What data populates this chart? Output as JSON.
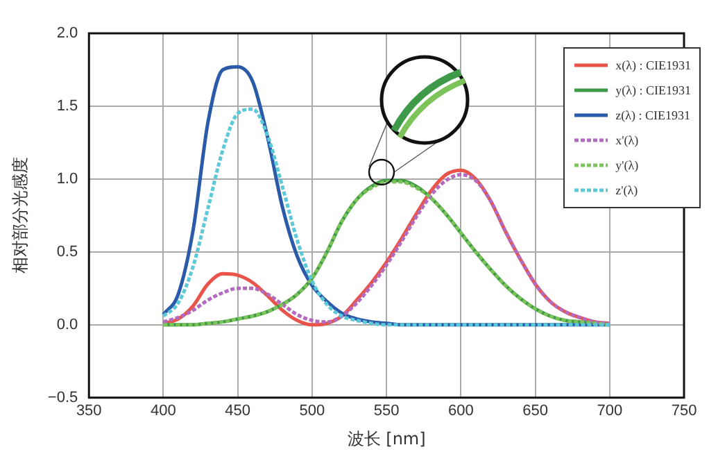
{
  "chart_data": {
    "type": "line",
    "xlabel": "波长 [nm]",
    "ylabel": "相对部分光感度",
    "x": [
      400,
      410,
      420,
      430,
      440,
      450,
      460,
      470,
      480,
      490,
      500,
      510,
      520,
      530,
      540,
      550,
      560,
      570,
      580,
      590,
      600,
      610,
      620,
      630,
      640,
      650,
      660,
      670,
      680,
      690,
      700
    ],
    "series": [
      {
        "name": "x(λ) : CIE1931",
        "color": "#e8544a",
        "line_style": "solid",
        "values": [
          0.01,
          0.04,
          0.13,
          0.28,
          0.35,
          0.34,
          0.29,
          0.2,
          0.1,
          0.03,
          0.0,
          0.01,
          0.06,
          0.17,
          0.29,
          0.43,
          0.59,
          0.76,
          0.92,
          1.03,
          1.06,
          1.0,
          0.85,
          0.64,
          0.45,
          0.28,
          0.16,
          0.09,
          0.05,
          0.02,
          0.01
        ]
      },
      {
        "name": "y(λ) : CIE1931",
        "color": "#3e9a48",
        "line_style": "solid",
        "values": [
          0.0,
          0.0,
          0.0,
          0.01,
          0.02,
          0.04,
          0.06,
          0.09,
          0.14,
          0.21,
          0.32,
          0.5,
          0.71,
          0.86,
          0.95,
          0.99,
          0.99,
          0.95,
          0.87,
          0.76,
          0.63,
          0.5,
          0.38,
          0.27,
          0.18,
          0.11,
          0.06,
          0.03,
          0.02,
          0.01,
          0.0
        ]
      },
      {
        "name": "z(λ) : CIE1931",
        "color": "#2a5aa8",
        "line_style": "solid",
        "values": [
          0.07,
          0.21,
          0.65,
          1.39,
          1.75,
          1.77,
          1.67,
          1.29,
          0.81,
          0.47,
          0.27,
          0.16,
          0.08,
          0.04,
          0.02,
          0.01,
          0.0,
          0,
          0,
          0,
          0,
          0,
          0,
          0,
          0,
          0,
          0,
          0,
          0,
          0,
          0
        ]
      },
      {
        "name": "x'(λ)",
        "color": "#b36bc0",
        "line_style": "dashed",
        "values": [
          0.02,
          0.05,
          0.1,
          0.17,
          0.22,
          0.25,
          0.25,
          0.21,
          0.14,
          0.07,
          0.03,
          0.02,
          0.06,
          0.15,
          0.27,
          0.41,
          0.57,
          0.74,
          0.89,
          0.99,
          1.03,
          0.99,
          0.85,
          0.64,
          0.45,
          0.28,
          0.16,
          0.09,
          0.05,
          0.02,
          0.01
        ]
      },
      {
        "name": "y'(λ)",
        "color": "#7cc35a",
        "line_style": "dashed",
        "values": [
          0.0,
          0.0,
          0.0,
          0.01,
          0.02,
          0.04,
          0.06,
          0.09,
          0.14,
          0.21,
          0.32,
          0.5,
          0.71,
          0.86,
          0.94,
          0.98,
          0.98,
          0.94,
          0.87,
          0.76,
          0.63,
          0.5,
          0.38,
          0.27,
          0.18,
          0.11,
          0.06,
          0.03,
          0.02,
          0.01,
          0.0
        ]
      },
      {
        "name": "z'(λ)",
        "color": "#5cc8d8",
        "line_style": "dashed",
        "values": [
          0.06,
          0.15,
          0.4,
          0.8,
          1.2,
          1.45,
          1.48,
          1.3,
          0.95,
          0.58,
          0.3,
          0.14,
          0.06,
          0.03,
          0.01,
          0,
          0,
          0,
          0,
          0,
          0,
          0,
          0,
          0,
          0,
          0,
          0,
          0,
          0,
          0,
          0
        ]
      }
    ],
    "xlim": [
      350,
      750
    ],
    "xticks": [
      350,
      400,
      450,
      500,
      550,
      600,
      650,
      700,
      750
    ],
    "ylim": [
      -0.5,
      2.0
    ],
    "yticks": [
      {
        "value": -0.5,
        "label": "−0.5"
      },
      {
        "value": 0,
        "label": "0.0"
      },
      {
        "value": 0.5,
        "label": "0.5"
      },
      {
        "value": 1,
        "label": "1.0"
      },
      {
        "value": 1.5,
        "label": "1.5"
      },
      {
        "value": 2,
        "label": "2.0"
      }
    ],
    "grid": true,
    "legend": "top right",
    "marker": "none"
  }
}
